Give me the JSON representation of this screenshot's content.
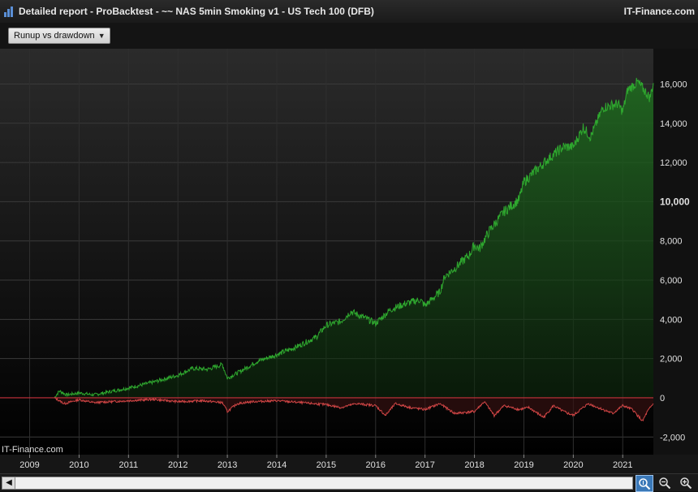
{
  "window": {
    "title": "Detailed report - ProBacktest - ~~ NAS 5min Smoking v1 - US Tech 100 (DFB)",
    "brand": "IT-Finance.com"
  },
  "toolbar": {
    "view_select": "Runup vs drawdown"
  },
  "watermark": "IT-Finance.com",
  "icons": {
    "app": "bar-chart-icon",
    "scroll_left": "chevron-left-icon",
    "zoom_fit": "zoom-fit-icon",
    "zoom_out": "zoom-out-icon",
    "zoom_in": "zoom-in-icon"
  },
  "colors": {
    "runup": "#2fa82f",
    "drawdown": "#d04545",
    "zero_line": "#c8323c",
    "background_top": "#2b2b2b",
    "background_bottom": "#000000"
  },
  "chart_data": {
    "type": "area",
    "title": "",
    "xlabel": "",
    "ylabel": "",
    "x_ticks": [
      "2009",
      "2010",
      "2011",
      "2012",
      "2013",
      "2014",
      "2015",
      "2016",
      "2017",
      "2018",
      "2019",
      "2020",
      "2021"
    ],
    "y_ticks": [
      -2000,
      0,
      2000,
      4000,
      6000,
      8000,
      10000,
      12000,
      14000,
      16000
    ],
    "y_tick_labels": [
      "-2,000",
      "0",
      "2,000",
      "4,000",
      "6,000",
      "8,000",
      "10,000",
      "12,000",
      "14,000",
      "16,000"
    ],
    "xlim": [
      2008.4,
      2021.62
    ],
    "ylim": [
      -2900,
      17800
    ],
    "grid": true,
    "series": [
      {
        "key": "runup",
        "x": [
          2009.5,
          2009.6,
          2009.75,
          2010.0,
          2010.3,
          2010.6,
          2011.0,
          2011.5,
          2012.0,
          2012.3,
          2012.6,
          2012.9,
          2013.0,
          2013.3,
          2013.6,
          2014.0,
          2014.4,
          2014.8,
          2015.0,
          2015.3,
          2015.5,
          2015.8,
          2016.0,
          2016.3,
          2016.6,
          2016.9,
          2017.0,
          2017.3,
          2017.4,
          2017.6,
          2017.9,
          2018.0,
          2018.1,
          2018.3,
          2018.6,
          2018.9,
          2019.0,
          2019.2,
          2019.5,
          2019.8,
          2020.0,
          2020.2,
          2020.35,
          2020.5,
          2020.6,
          2020.9,
          2021.0,
          2021.1,
          2021.3,
          2021.4,
          2021.55,
          2021.62
        ],
        "values": [
          0,
          350,
          150,
          250,
          150,
          300,
          500,
          800,
          1150,
          1500,
          1450,
          1700,
          1000,
          1400,
          1850,
          2200,
          2600,
          3100,
          3700,
          3900,
          4400,
          4050,
          3800,
          4500,
          4800,
          5000,
          4700,
          5400,
          6200,
          6600,
          7300,
          7800,
          7600,
          8500,
          9500,
          10100,
          11000,
          11500,
          12200,
          12800,
          12800,
          13800,
          13300,
          14200,
          14800,
          15000,
          14600,
          15700,
          16100,
          15800,
          15300,
          16050
        ]
      },
      {
        "key": "drawdown",
        "x": [
          2009.5,
          2009.7,
          2010.0,
          2010.3,
          2011.0,
          2011.5,
          2012.0,
          2012.5,
          2012.9,
          2013.0,
          2013.2,
          2013.5,
          2014.0,
          2014.5,
          2015.0,
          2015.3,
          2015.6,
          2016.0,
          2016.2,
          2016.4,
          2016.7,
          2017.0,
          2017.3,
          2017.6,
          2018.0,
          2018.2,
          2018.4,
          2018.6,
          2018.9,
          2019.1,
          2019.4,
          2019.6,
          2019.8,
          2020.0,
          2020.3,
          2020.5,
          2020.8,
          2021.0,
          2021.2,
          2021.3,
          2021.4,
          2021.5,
          2021.62
        ],
        "values": [
          0,
          -300,
          -100,
          -250,
          -150,
          -80,
          -200,
          -150,
          -250,
          -700,
          -300,
          -200,
          -150,
          -250,
          -350,
          -500,
          -300,
          -400,
          -900,
          -300,
          -500,
          -600,
          -300,
          -800,
          -700,
          -200,
          -900,
          -400,
          -600,
          -500,
          -1000,
          -400,
          -700,
          -900,
          -300,
          -500,
          -800,
          -400,
          -600,
          -900,
          -1200,
          -700,
          -300
        ]
      }
    ]
  }
}
